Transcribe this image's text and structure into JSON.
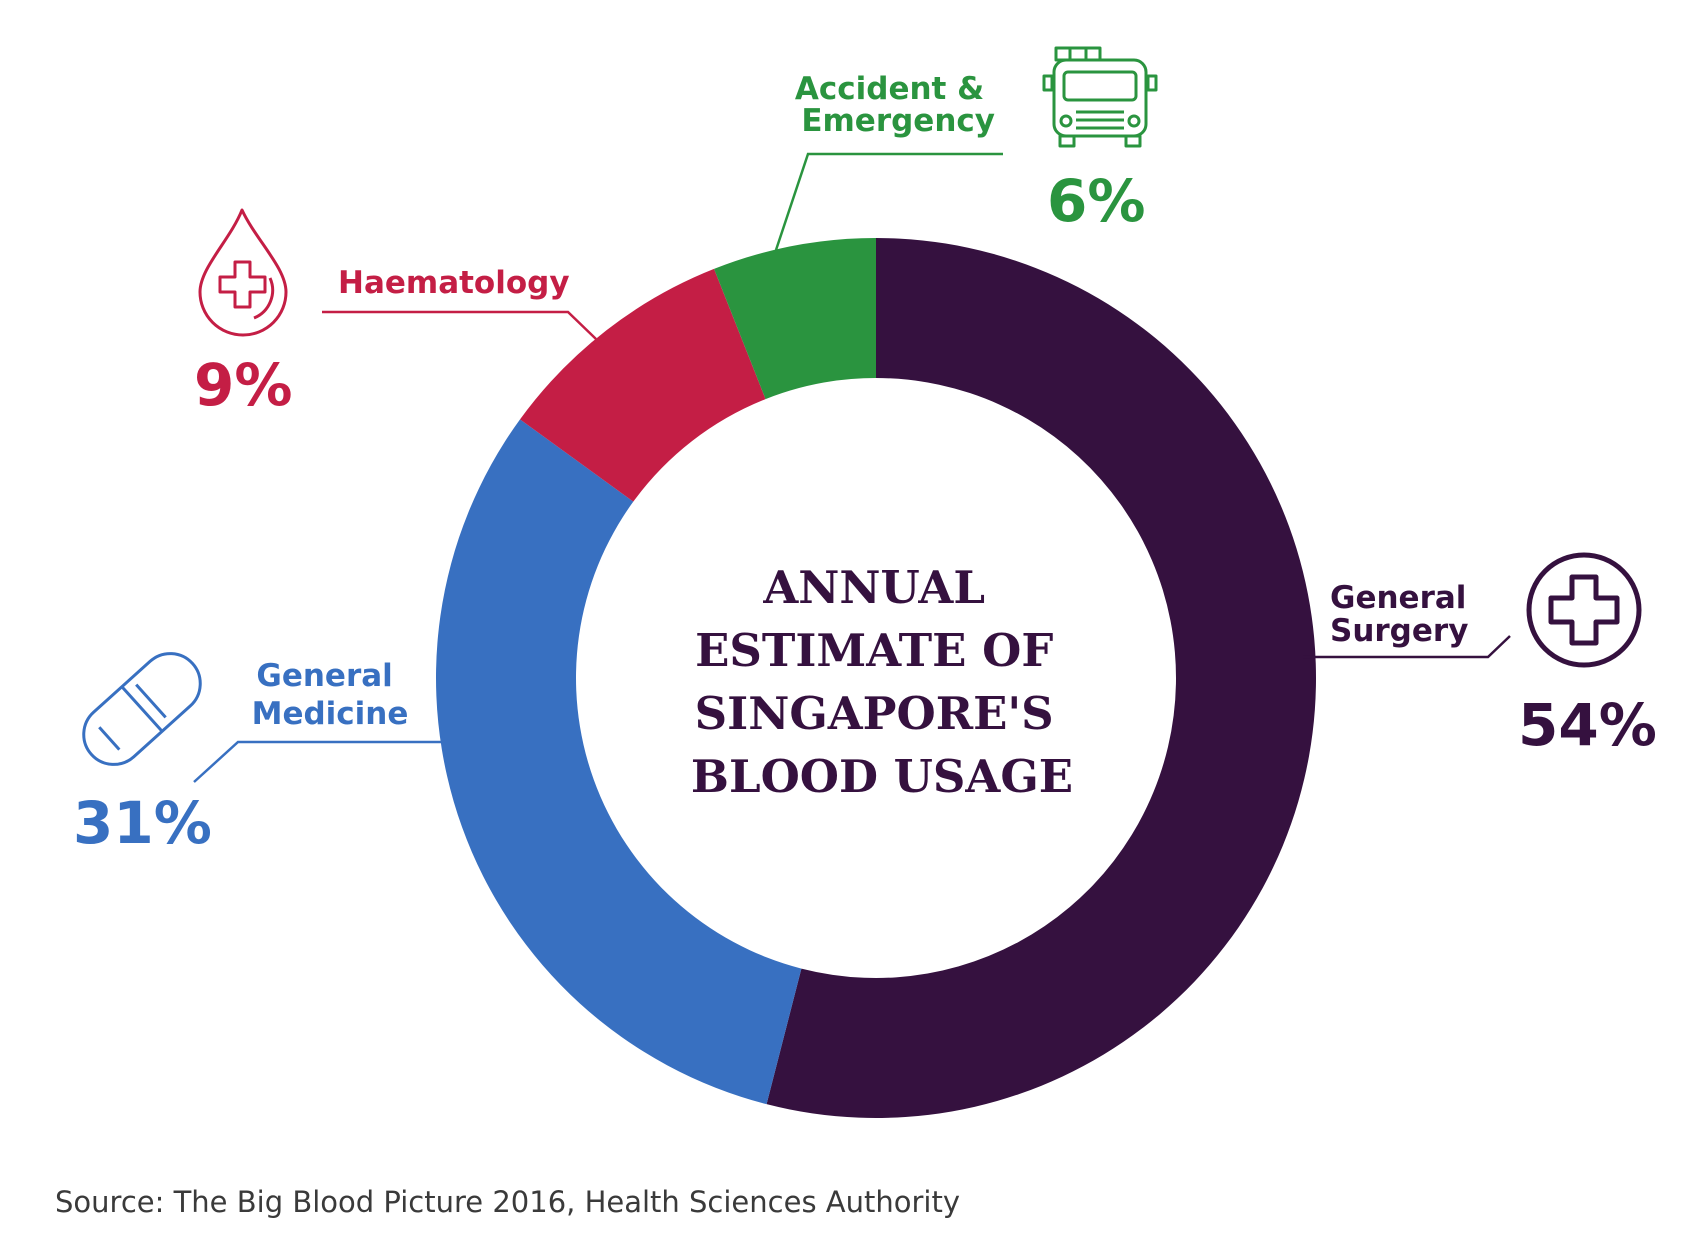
{
  "chart_data": {
    "type": "pie",
    "title": "ANNUAL ESTIMATE OF SINGAPORE'S BLOOD USAGE",
    "title_lines": [
      "ANNUAL",
      "ESTIMATE OF",
      "SINGAPORE'S",
      "BLOOD USAGE"
    ],
    "unit": "%",
    "slices": [
      {
        "label": "General Surgery",
        "label_lines": [
          "General",
          "Surgery"
        ],
        "value": 54,
        "value_label": "54%",
        "color": "#35113f",
        "icon": "medical-cross-icon"
      },
      {
        "label": "General Medicine",
        "label_lines": [
          "General",
          "Medicine"
        ],
        "value": 31,
        "value_label": "31%",
        "color": "#3870c1",
        "icon": "pill-icon"
      },
      {
        "label": "Haematology",
        "label_lines": [
          "Haematology"
        ],
        "value": 9,
        "value_label": "9%",
        "color": "#c41e45",
        "icon": "blood-drop-icon"
      },
      {
        "label": "Accident & Emergency",
        "label_lines": [
          "Accident &",
          "Emergency"
        ],
        "value": 6,
        "value_label": "6%",
        "color": "#2a943f",
        "icon": "ambulance-icon"
      }
    ]
  },
  "source": "Source: The Big Blood Picture 2016, Health Sciences Authority"
}
